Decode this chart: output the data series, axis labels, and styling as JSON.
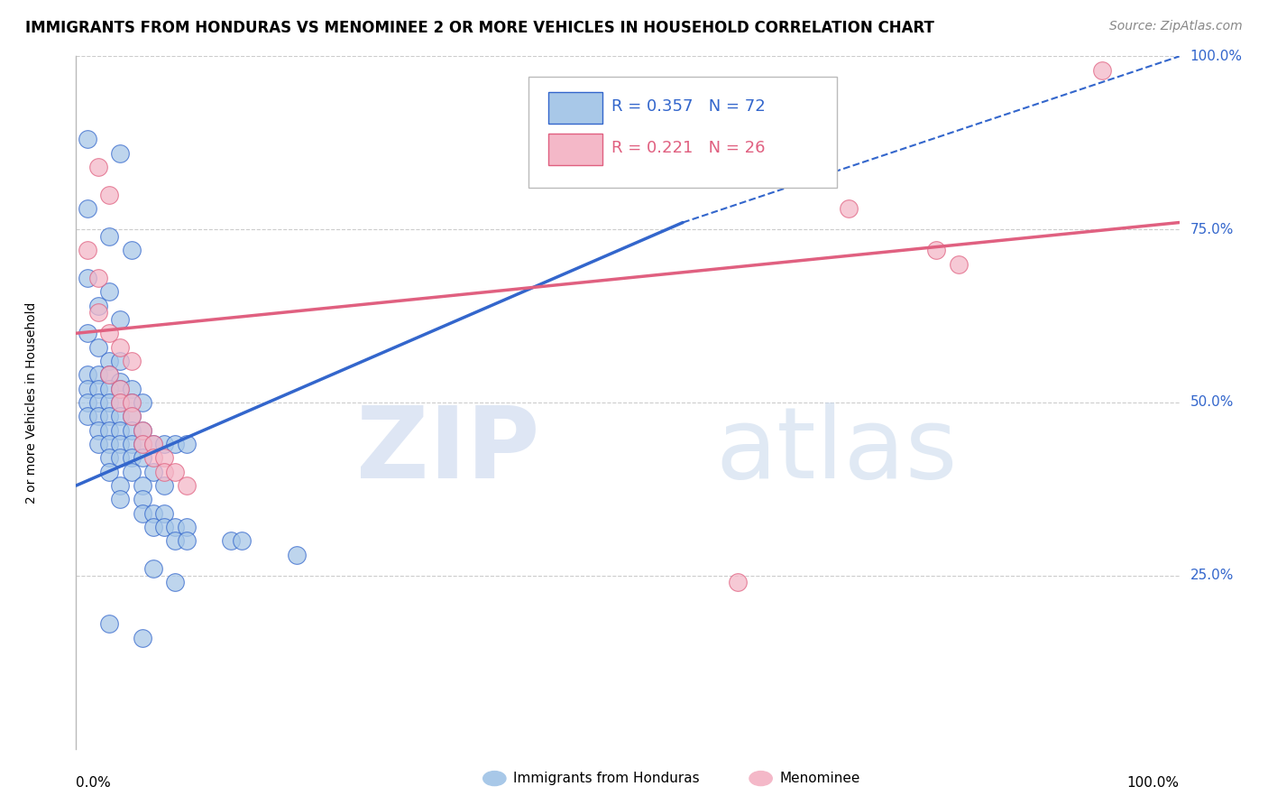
{
  "title": "IMMIGRANTS FROM HONDURAS VS MENOMINEE 2 OR MORE VEHICLES IN HOUSEHOLD CORRELATION CHART",
  "source": "Source: ZipAtlas.com",
  "ylabel": "2 or more Vehicles in Household",
  "xlim": [
    0.0,
    1.0
  ],
  "ylim": [
    0.0,
    1.0
  ],
  "ytick_labels": [
    "100.0%",
    "75.0%",
    "50.0%",
    "25.0%"
  ],
  "ytick_vals": [
    1.0,
    0.75,
    0.5,
    0.25
  ],
  "legend_blue_r": "0.357",
  "legend_blue_n": "72",
  "legend_pink_r": "0.221",
  "legend_pink_n": "26",
  "blue_color": "#A8C8E8",
  "pink_color": "#F4B8C8",
  "blue_line_color": "#3366CC",
  "pink_line_color": "#E06080",
  "blue_scatter": [
    [
      0.01,
      0.88
    ],
    [
      0.04,
      0.86
    ],
    [
      0.01,
      0.78
    ],
    [
      0.03,
      0.74
    ],
    [
      0.05,
      0.72
    ],
    [
      0.01,
      0.68
    ],
    [
      0.03,
      0.66
    ],
    [
      0.02,
      0.64
    ],
    [
      0.04,
      0.62
    ],
    [
      0.01,
      0.6
    ],
    [
      0.02,
      0.58
    ],
    [
      0.03,
      0.56
    ],
    [
      0.04,
      0.56
    ],
    [
      0.01,
      0.54
    ],
    [
      0.02,
      0.54
    ],
    [
      0.03,
      0.54
    ],
    [
      0.04,
      0.53
    ],
    [
      0.01,
      0.52
    ],
    [
      0.02,
      0.52
    ],
    [
      0.03,
      0.52
    ],
    [
      0.04,
      0.52
    ],
    [
      0.05,
      0.52
    ],
    [
      0.01,
      0.5
    ],
    [
      0.02,
      0.5
    ],
    [
      0.03,
      0.5
    ],
    [
      0.04,
      0.5
    ],
    [
      0.05,
      0.5
    ],
    [
      0.06,
      0.5
    ],
    [
      0.01,
      0.48
    ],
    [
      0.02,
      0.48
    ],
    [
      0.03,
      0.48
    ],
    [
      0.04,
      0.48
    ],
    [
      0.05,
      0.48
    ],
    [
      0.02,
      0.46
    ],
    [
      0.03,
      0.46
    ],
    [
      0.04,
      0.46
    ],
    [
      0.05,
      0.46
    ],
    [
      0.06,
      0.46
    ],
    [
      0.02,
      0.44
    ],
    [
      0.03,
      0.44
    ],
    [
      0.04,
      0.44
    ],
    [
      0.05,
      0.44
    ],
    [
      0.06,
      0.44
    ],
    [
      0.07,
      0.44
    ],
    [
      0.08,
      0.44
    ],
    [
      0.09,
      0.44
    ],
    [
      0.1,
      0.44
    ],
    [
      0.03,
      0.42
    ],
    [
      0.04,
      0.42
    ],
    [
      0.05,
      0.42
    ],
    [
      0.06,
      0.42
    ],
    [
      0.03,
      0.4
    ],
    [
      0.05,
      0.4
    ],
    [
      0.07,
      0.4
    ],
    [
      0.04,
      0.38
    ],
    [
      0.06,
      0.38
    ],
    [
      0.08,
      0.38
    ],
    [
      0.04,
      0.36
    ],
    [
      0.06,
      0.36
    ],
    [
      0.06,
      0.34
    ],
    [
      0.07,
      0.34
    ],
    [
      0.08,
      0.34
    ],
    [
      0.07,
      0.32
    ],
    [
      0.08,
      0.32
    ],
    [
      0.09,
      0.32
    ],
    [
      0.1,
      0.32
    ],
    [
      0.09,
      0.3
    ],
    [
      0.1,
      0.3
    ],
    [
      0.14,
      0.3
    ],
    [
      0.15,
      0.3
    ],
    [
      0.2,
      0.28
    ],
    [
      0.07,
      0.26
    ],
    [
      0.09,
      0.24
    ],
    [
      0.03,
      0.18
    ],
    [
      0.06,
      0.16
    ]
  ],
  "pink_scatter": [
    [
      0.02,
      0.84
    ],
    [
      0.03,
      0.8
    ],
    [
      0.01,
      0.72
    ],
    [
      0.02,
      0.68
    ],
    [
      0.02,
      0.63
    ],
    [
      0.03,
      0.6
    ],
    [
      0.04,
      0.58
    ],
    [
      0.05,
      0.56
    ],
    [
      0.03,
      0.54
    ],
    [
      0.04,
      0.52
    ],
    [
      0.04,
      0.5
    ],
    [
      0.05,
      0.5
    ],
    [
      0.05,
      0.48
    ],
    [
      0.06,
      0.46
    ],
    [
      0.06,
      0.44
    ],
    [
      0.07,
      0.44
    ],
    [
      0.07,
      0.42
    ],
    [
      0.08,
      0.42
    ],
    [
      0.08,
      0.4
    ],
    [
      0.09,
      0.4
    ],
    [
      0.1,
      0.38
    ],
    [
      0.7,
      0.78
    ],
    [
      0.78,
      0.72
    ],
    [
      0.8,
      0.7
    ],
    [
      0.6,
      0.24
    ],
    [
      0.93,
      0.98
    ]
  ],
  "blue_trendline_solid": [
    [
      0.0,
      0.38
    ],
    [
      0.55,
      0.76
    ]
  ],
  "blue_trendline_dashed": [
    [
      0.55,
      0.76
    ],
    [
      1.0,
      1.0
    ]
  ],
  "pink_trendline": [
    [
      0.0,
      0.6
    ],
    [
      1.0,
      0.76
    ]
  ],
  "watermark_zip": "ZIP",
  "watermark_atlas": "atlas",
  "background_color": "#FFFFFF",
  "grid_color": "#CCCCCC",
  "title_fontsize": 12,
  "source_fontsize": 10,
  "tick_fontsize": 11,
  "legend_fontsize": 13
}
